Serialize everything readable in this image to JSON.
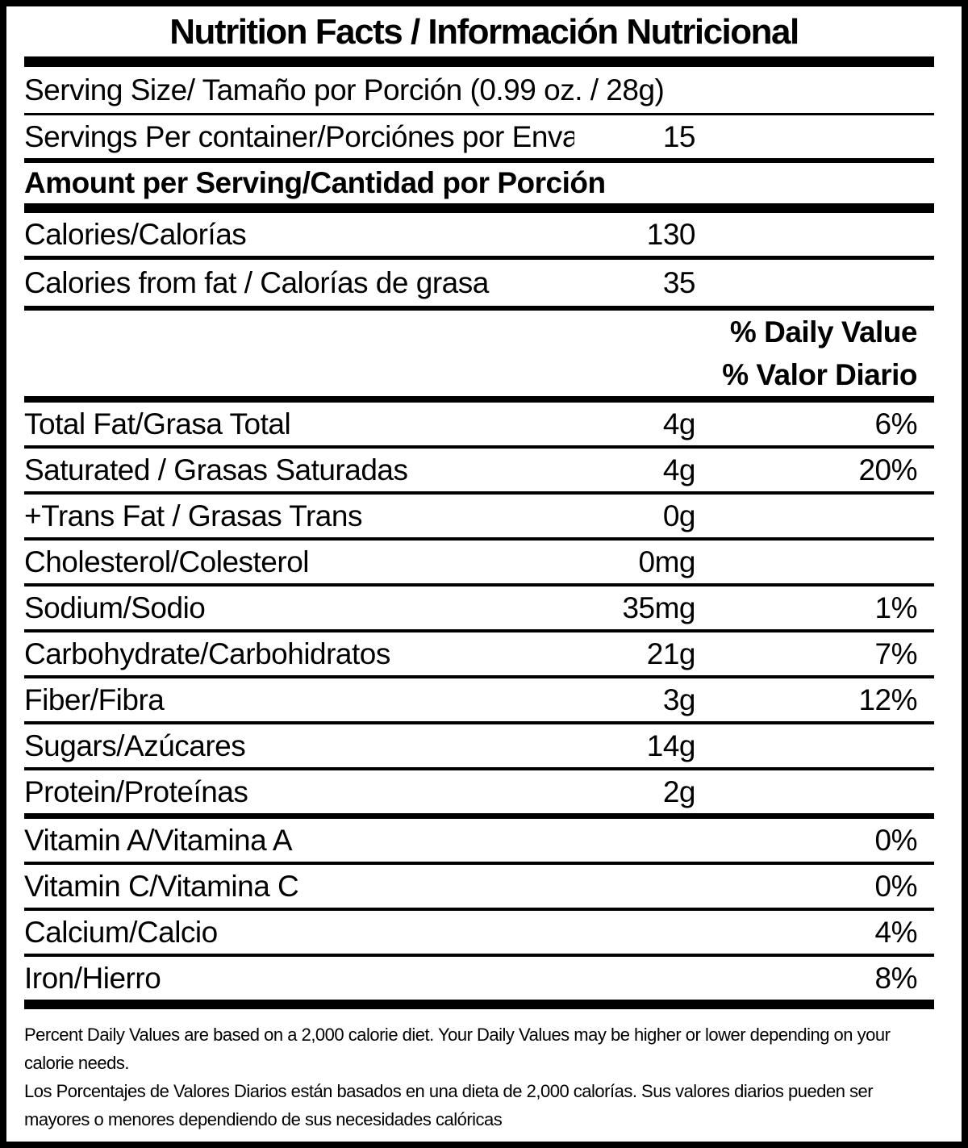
{
  "colors": {
    "ink": "#000000",
    "paper": "#ffffff"
  },
  "title": "Nutrition Facts / Información Nutricional",
  "serving": {
    "serving_size_label": "Serving Size/ Tamaño por Porción  (0.99 oz. / 28g)",
    "servings_per_container_label": "Servings Per container/Porciónes por Envase:",
    "servings_per_container_value": "15",
    "amount_per_serving_label": "Amount per Serving/Cantidad por Porción"
  },
  "calories": {
    "label": "Calories/Calorías",
    "value": "130"
  },
  "calories_from_fat": {
    "label": "Calories from fat / Calorías de grasa",
    "value": "35"
  },
  "daily_value_headers": {
    "en": "% Daily Value",
    "es": "% Valor Diario"
  },
  "nutrients": [
    {
      "label": "Total Fat/Grasa Total",
      "amount": "4g",
      "dv": "6%"
    },
    {
      "label": "Saturated / Grasas Saturadas",
      "amount": "4g",
      "dv": "20%"
    },
    {
      "label": "+Trans Fat / Grasas Trans",
      "amount": "0g",
      "dv": ""
    },
    {
      "label": "Cholesterol/Colesterol",
      "amount": "0mg",
      "dv": ""
    },
    {
      "label": "Sodium/Sodio",
      "amount": "35mg",
      "dv": "1%"
    },
    {
      "label": "Carbohydrate/Carbohidratos",
      "amount": "21g",
      "dv": "7%"
    },
    {
      "label": "Fiber/Fibra",
      "amount": "3g",
      "dv": "12%"
    },
    {
      "label": "Sugars/Azúcares",
      "amount": "14g",
      "dv": ""
    },
    {
      "label": "Protein/Proteínas",
      "amount": "2g",
      "dv": ""
    },
    {
      "label": "Vitamin A/Vitamina A",
      "amount": "",
      "dv": "0%"
    },
    {
      "label": "Vitamin C/Vitamina C",
      "amount": "",
      "dv": "0%"
    },
    {
      "label": "Calcium/Calcio",
      "amount": "",
      "dv": "4%"
    },
    {
      "label": "Iron/Hierro",
      "amount": "",
      "dv": "8%"
    }
  ],
  "footnotes": {
    "en": "Percent Daily Values are based on a 2,000 calorie diet. Your Daily Values may be higher or lower depending on your calorie needs.",
    "es": "Los Porcentajes de Valores Diarios están basados en una dieta de 2,000 calorías. Sus valores diarios pueden ser mayores o menores dependiendo de sus necesidades calóricas"
  }
}
